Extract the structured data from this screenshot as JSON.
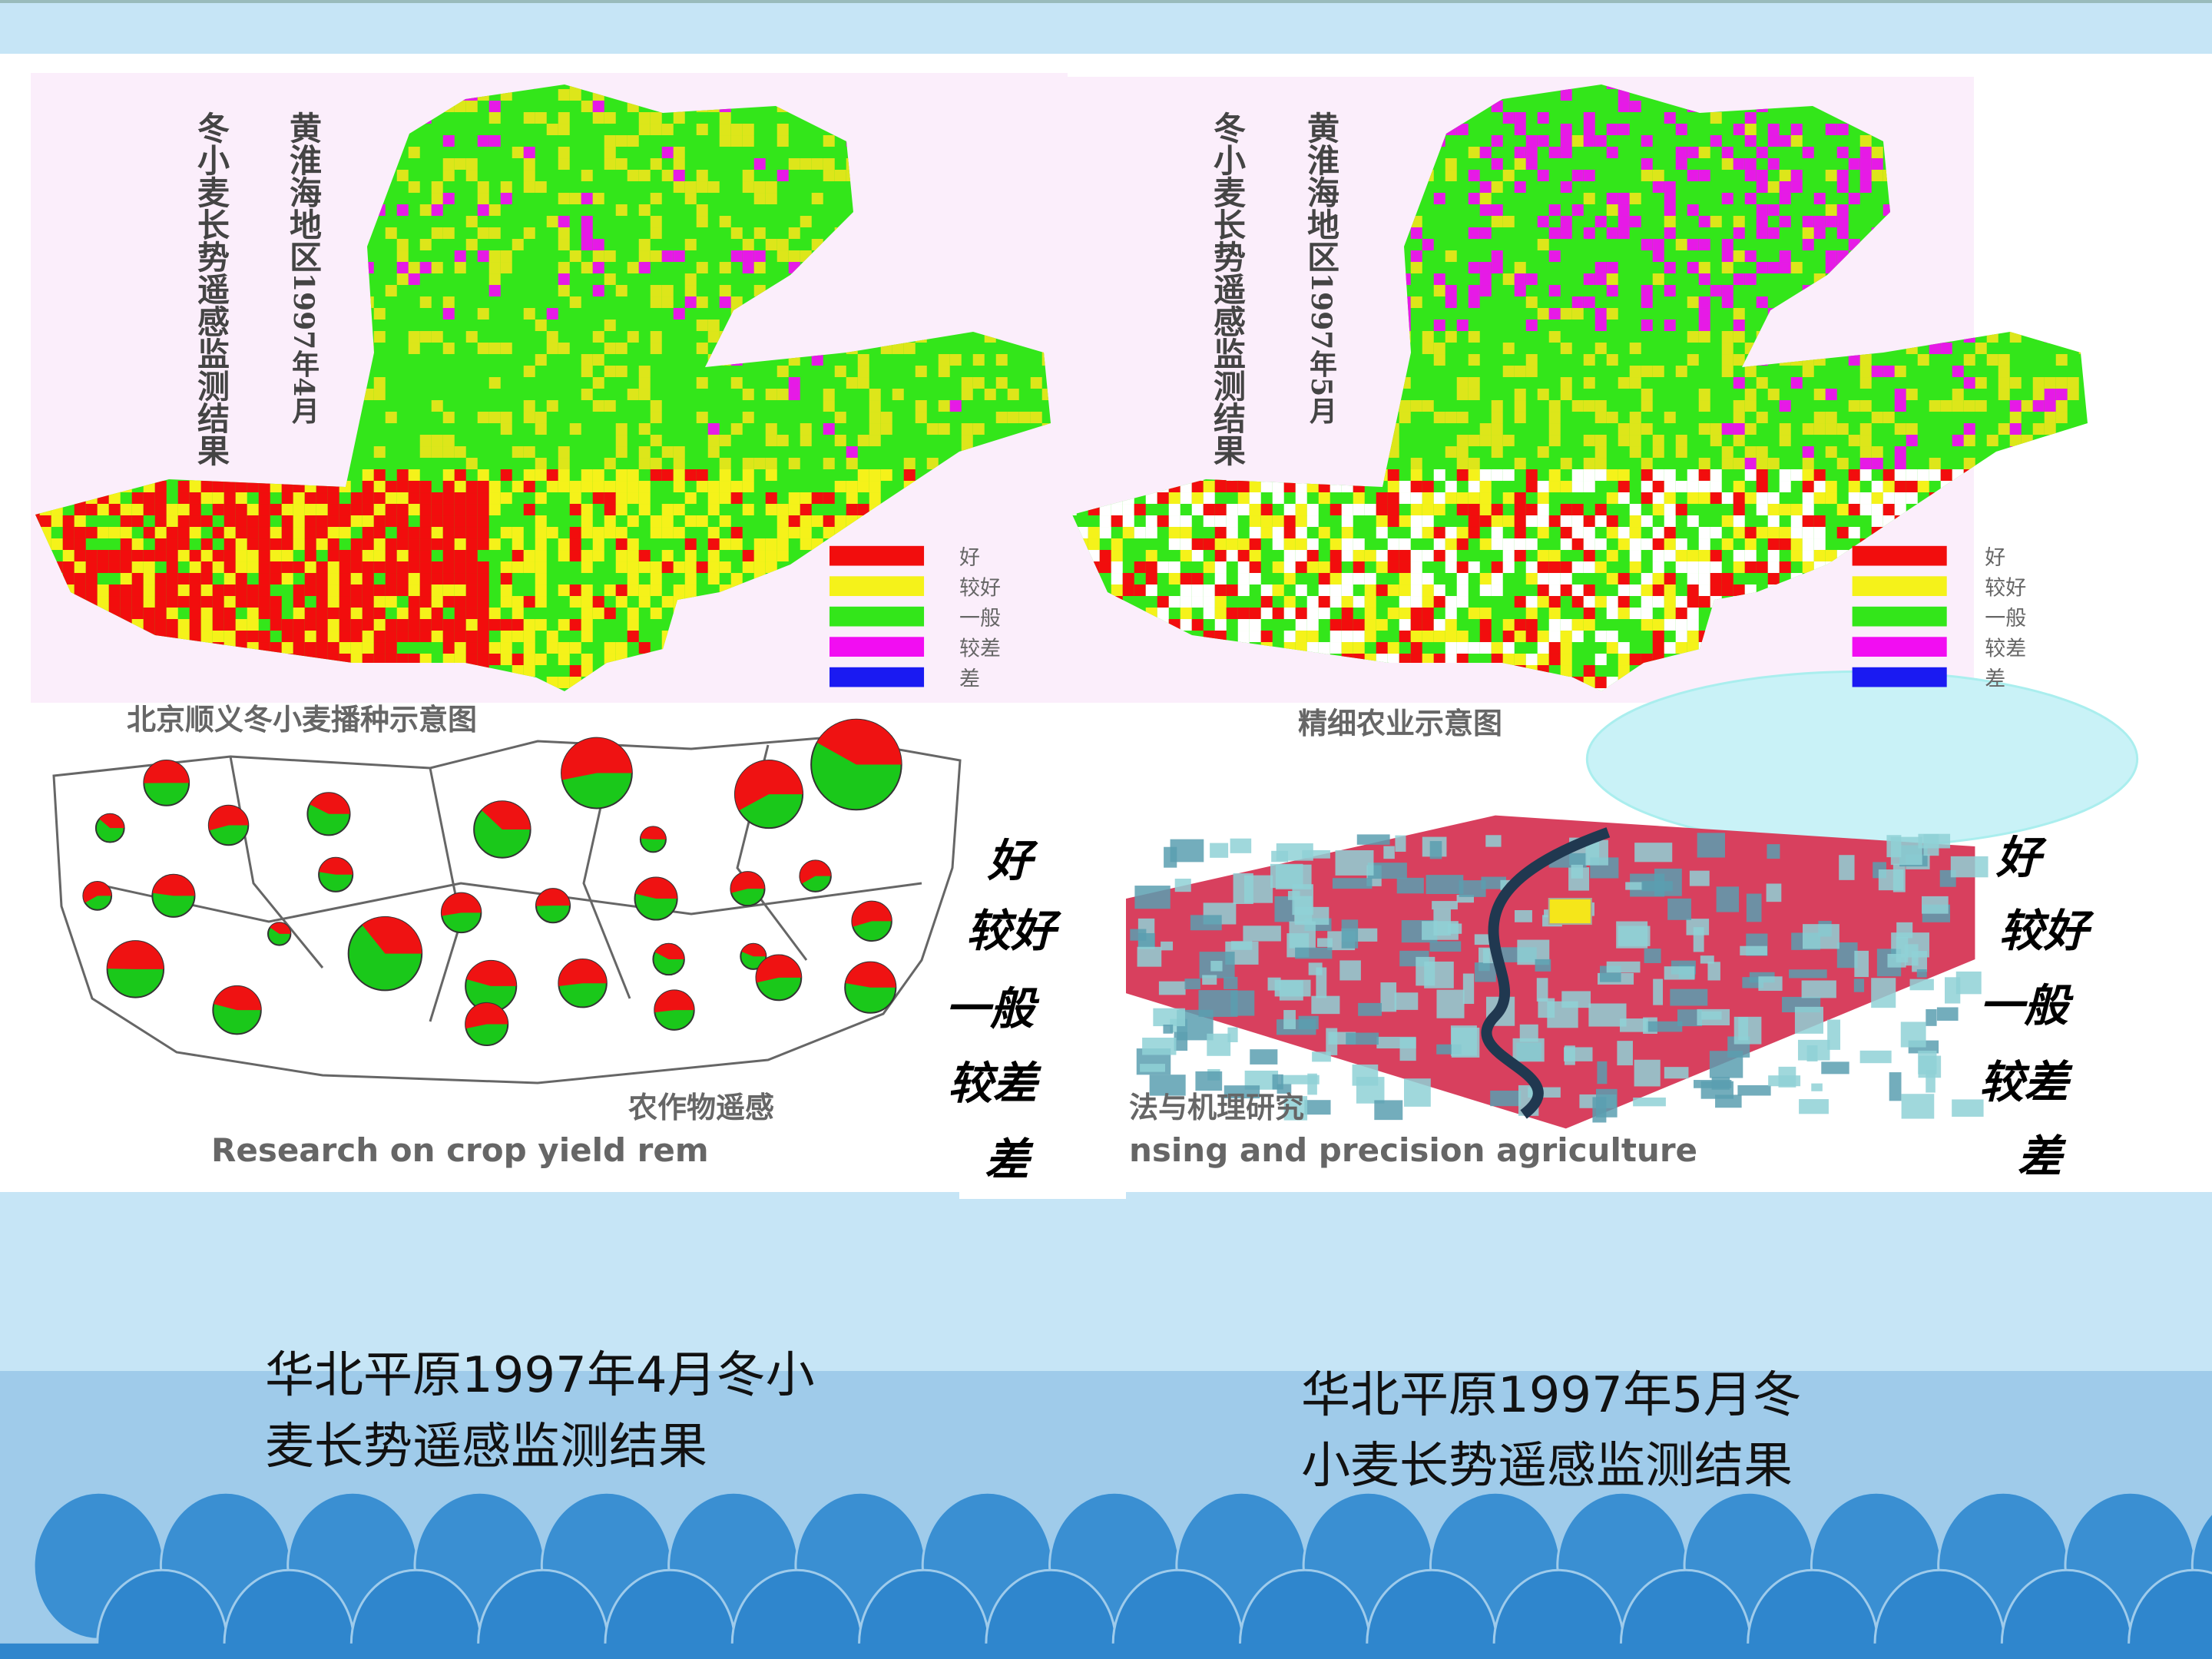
{
  "maps": [
    {
      "title_line1": "黄淮海地区",
      "date": "1997年4月",
      "title_line2": "冬小麦长势遥感监测结果",
      "caption": [
        "华北平原1997年4月冬小",
        "麦长势遥感监测结果"
      ]
    },
    {
      "title_line1": "黄淮海地区",
      "date": "1997年5月",
      "title_line2": "冬小麦长势遥感监测结果",
      "caption": [
        "华北平原1997年5月冬",
        "小麦长势遥感监测结果"
      ]
    }
  ],
  "legend": [
    "好",
    "较好",
    "一般",
    "较差",
    "差"
  ],
  "figures": {
    "sowing_title": "北京顺义冬小麦播种示意图",
    "precision_title": "精细农业示意图",
    "banner_cn": "农作物遥感",
    "banner_cn_tail": "法与机理研究",
    "banner_en": "Research on crop yield rem",
    "banner_en_tail": "nsing and precision agriculture"
  }
}
